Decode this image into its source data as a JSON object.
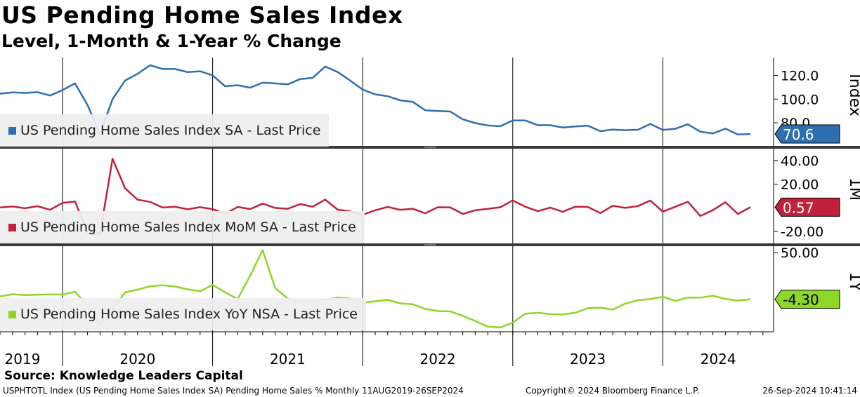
{
  "header": {
    "title": "US Pending Home Sales Index",
    "subtitle": "Level, 1-Month & 1-Year % Change"
  },
  "footer": {
    "source": "Source: Knowledge Leaders Capital",
    "ticker_info": "USPHTOTL Index (US Pending Home Sales Index SA) Pending Home Sales %  Monthly 11AUG2019-26SEP2024",
    "copyright": "Copyright© 2024 Bloomberg Finance L.P.",
    "timestamp": "26-Sep-2024 10:41:14"
  },
  "chart_data": [
    {
      "type": "line",
      "panel": "Index",
      "axis_title": "Index",
      "legend": "US Pending Home Sales Index SA - Last Price",
      "last_value_label": "70.6",
      "color": "#2e6fb0",
      "ylim": [
        60,
        135
      ],
      "ticks": [
        120.0,
        100.0,
        80.0
      ],
      "tick_labels": [
        "120.0",
        "100.0",
        "80.0"
      ],
      "x_start": "2019-08",
      "series": [
        {
          "values": [
            104.6,
            105.6,
            105.2,
            105.8,
            103.0,
            107.6,
            113.2,
            95.0,
            70.3,
            100.0,
            115.6,
            121.3,
            128.5,
            125.4,
            125.3,
            122.7,
            123.4,
            120.0,
            110.8,
            111.7,
            109.6,
            113.8,
            113.2,
            112.4,
            116.8,
            117.9,
            127.4,
            122.8,
            115.6,
            108.0,
            104.0,
            102.4,
            99.0,
            97.7,
            90.6,
            90.0,
            89.5,
            83.0,
            79.8,
            77.8,
            77.2,
            82.0,
            82.0,
            78.0,
            78.0,
            76.0,
            77.0,
            77.6,
            73.0,
            74.3,
            73.8,
            74.2,
            79.0,
            74.0,
            75.0,
            78.8,
            72.5,
            71.1,
            75.1,
            70.2,
            70.6
          ]
        }
      ]
    },
    {
      "type": "line",
      "panel": "1M",
      "axis_title": "1M",
      "legend": "US Pending Home Sales Index MoM SA - Last Price",
      "last_value_label": "0.57",
      "color": "#c0223b",
      "ylim": [
        -30,
        50
      ],
      "ticks": [
        40.0,
        20.0,
        -20.0
      ],
      "tick_labels": [
        "40.00",
        "20.00",
        "-20.00"
      ],
      "x_start": "2019-08",
      "series": [
        {
          "values": [
            0.4,
            1.2,
            -0.3,
            1.4,
            -1.6,
            4.2,
            5.4,
            -20.8,
            -21.8,
            41.5,
            16.6,
            7.0,
            5.1,
            0.3,
            1.0,
            -1.2,
            0.6,
            -1.0,
            -5.2,
            0.8,
            -1.0,
            3.6,
            0.0,
            -0.8,
            3.2,
            1.0,
            7.0,
            -1.5,
            -3.0,
            -5.8,
            -2.0,
            0.8,
            -1.6,
            -0.7,
            -4.6,
            0.5,
            0.4,
            -5.1,
            -2.0,
            -0.8,
            0.5,
            6.3,
            1.0,
            -2.8,
            0.2,
            -3.3,
            1.0,
            0.8,
            -4.4,
            1.8,
            0.0,
            1.5,
            6.2,
            -3.2,
            1.0,
            5.2,
            -6.8,
            -1.9,
            4.8,
            -5.2,
            0.57
          ]
        }
      ]
    },
    {
      "type": "line",
      "panel": "1Y",
      "axis_title": "1Y",
      "legend": "US Pending Home Sales Index YoY NSA - Last Price",
      "last_value_label": "-4.30",
      "color": "#8ed628",
      "ylim": [
        -42,
        58
      ],
      "ticks": [
        50.0
      ],
      "tick_labels": [
        "50.00"
      ],
      "x_start": "2019-08",
      "series": [
        {
          "values": [
            -1.0,
            1.5,
            0.5,
            1.0,
            1.2,
            1.1,
            4.5,
            -12.0,
            -33.5,
            -16.0,
            3.6,
            6.9,
            10.7,
            12.0,
            10.4,
            7.2,
            5.0,
            12.4,
            3.7,
            -4.1,
            22.9,
            52.6,
            8.7,
            -3.5,
            -7.3,
            -6.5,
            -4.9,
            -2.5,
            -3.4,
            -8.5,
            -6.6,
            -5.0,
            -9.1,
            -10.1,
            -15.5,
            -18.0,
            -18.4,
            -23.5,
            -29.6,
            -36.0,
            -37.0,
            -31.4,
            -21.0,
            -20.0,
            -21.6,
            -22.0,
            -20.0,
            -14.7,
            -14.0,
            -16.3,
            -9.3,
            -5.4,
            -4.1,
            -1.4,
            -6.3,
            -2.3,
            -2.4,
            -0.2,
            -4.0,
            -5.9,
            -4.3
          ]
        }
      ]
    }
  ],
  "x_axis": {
    "labels": [
      "2019",
      "2020",
      "2021",
      "2022",
      "2023",
      "2024"
    ]
  }
}
